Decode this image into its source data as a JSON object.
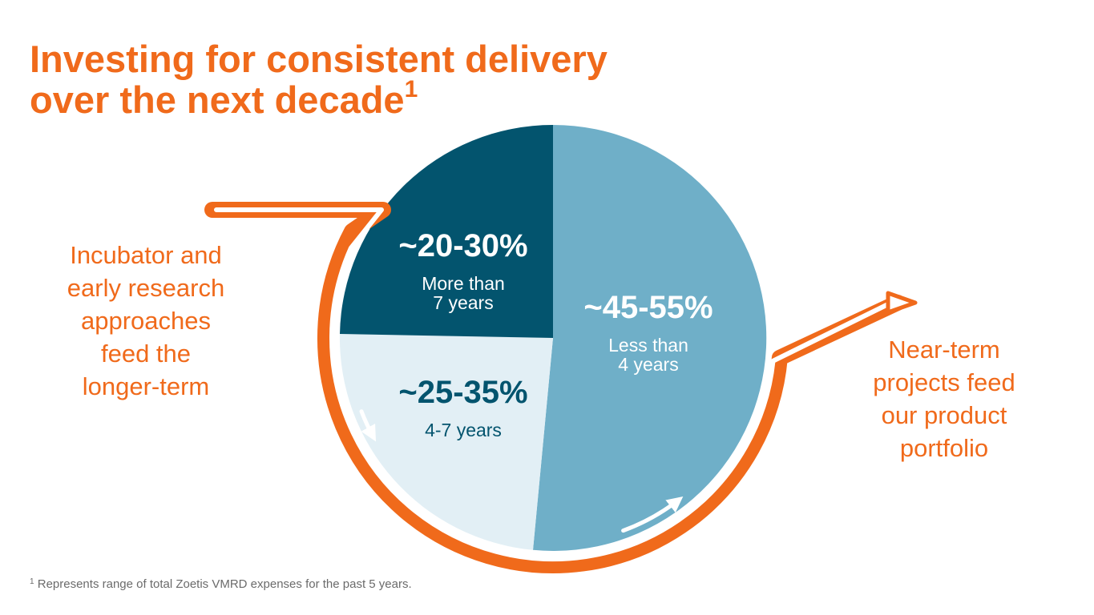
{
  "slide": {
    "title_line1": "Investing for consistent delivery",
    "title_line2": "over the next decade",
    "title_superscript": "1",
    "left_caption": [
      "Incubator and",
      "early research",
      "approaches",
      "feed the",
      "longer-term"
    ],
    "right_caption": [
      "Near-term",
      "projects feed",
      "our product",
      "portfolio"
    ],
    "footnote_marker": "1",
    "footnote_text": "Represents range of total Zoetis VMRD expenses for the past 5 years."
  },
  "colors": {
    "accent": "#f06a1b",
    "dark": "#03546e",
    "medium": "#6fafc8",
    "light": "#e2eff5",
    "white_text": "#ffffff",
    "dark_text": "#03546e"
  },
  "chart_data": {
    "type": "pie",
    "title": "",
    "slices": [
      {
        "range": "~45-55%",
        "label_lines": [
          "Less than",
          "4 years"
        ],
        "value": 51.5,
        "color": "#6fafc8",
        "text_color": "#ffffff"
      },
      {
        "range": "~25-35%",
        "label_lines": [
          "4-7 years"
        ],
        "value": 23.8,
        "color": "#e2eff5",
        "text_color": "#03546e"
      },
      {
        "range": "~20-30%",
        "label_lines": [
          "More than",
          "7 years"
        ],
        "value": 24.7,
        "color": "#03546e",
        "text_color": "#ffffff"
      }
    ],
    "start_angle_deg": 0,
    "direction": "clockwise",
    "legend": "none"
  }
}
